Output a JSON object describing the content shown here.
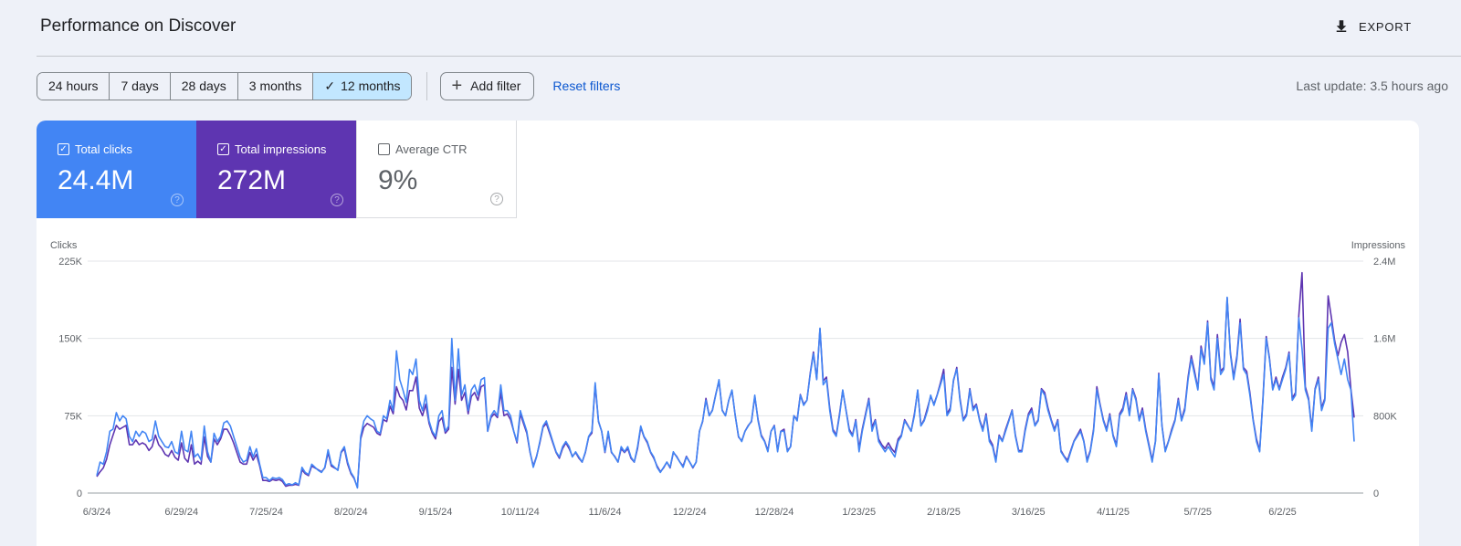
{
  "header": {
    "title": "Performance on Discover",
    "export_label": "EXPORT",
    "export_icon": "download-icon"
  },
  "toolbar": {
    "date_ranges": [
      "24 hours",
      "7 days",
      "28 days",
      "3 months",
      "12 months"
    ],
    "selected_range": "12 months",
    "add_filter_label": "Add filter",
    "reset_label": "Reset filters",
    "last_update": "Last update: 3.5 hours ago"
  },
  "metrics": [
    {
      "label": "Total clicks",
      "value": "24.4M",
      "checked": true,
      "color": "#4285f4"
    },
    {
      "label": "Total impressions",
      "value": "272M",
      "checked": true,
      "color": "#5e35b1"
    },
    {
      "label": "Average CTR",
      "value": "9%",
      "checked": false
    }
  ],
  "chart_data": {
    "type": "line",
    "ylabel_left": "Clicks",
    "ylabel_right": "Impressions",
    "y_left_ticks": [
      "0",
      "75K",
      "150K",
      "225K"
    ],
    "y_right_ticks": [
      "0",
      "800K",
      "1.6M",
      "2.4M"
    ],
    "ylim_left": [
      0,
      225000
    ],
    "ylim_right": [
      0,
      2400000
    ],
    "grid": true,
    "x_tick_labels": [
      "6/3/24",
      "6/29/24",
      "7/25/24",
      "8/20/24",
      "9/15/24",
      "10/11/24",
      "11/6/24",
      "12/2/24",
      "12/28/24",
      "1/23/25",
      "2/18/25",
      "3/16/25",
      "4/11/25",
      "5/7/25",
      "6/2/25"
    ],
    "x_tick_offsets_days": [
      0,
      26,
      52,
      78,
      104,
      130,
      156,
      182,
      208,
      234,
      260,
      286,
      312,
      338,
      364
    ],
    "series": [
      {
        "name": "Clicks",
        "color": "#4285f4",
        "axis": "left",
        "values": [
          17000,
          30000,
          28000,
          40000,
          60000,
          62000,
          78000,
          70000,
          75000,
          72000,
          55000,
          50000,
          60000,
          55000,
          60000,
          58000,
          50000,
          52000,
          70000,
          55000,
          50000,
          45000,
          44000,
          50000,
          40000,
          38000,
          60000,
          42000,
          40000,
          60000,
          35000,
          38000,
          32000,
          65000,
          40000,
          30000,
          58000,
          50000,
          55000,
          68000,
          70000,
          65000,
          55000,
          45000,
          35000,
          30000,
          32000,
          45000,
          35000,
          43000,
          28000,
          15000,
          15000,
          12000,
          15000,
          14000,
          15000,
          13000,
          8000,
          9000,
          8000,
          10000,
          8000,
          25000,
          20000,
          18000,
          28000,
          25000,
          22000,
          20000,
          25000,
          42000,
          28000,
          25000,
          22000,
          40000,
          45000,
          30000,
          20000,
          15000,
          5000,
          55000,
          70000,
          75000,
          72000,
          70000,
          60000,
          58000,
          75000,
          72000,
          90000,
          80000,
          138000,
          110000,
          100000,
          88000,
          120000,
          115000,
          130000,
          90000,
          80000,
          95000,
          70000,
          60000,
          55000,
          75000,
          80000,
          60000,
          65000,
          150000,
          90000,
          140000,
          95000,
          105000,
          80000,
          100000,
          105000,
          95000,
          110000,
          112000,
          60000,
          75000,
          80000,
          75000,
          105000,
          80000,
          80000,
          75000,
          60000,
          50000,
          80000,
          70000,
          60000,
          40000,
          25000,
          35000,
          50000,
          65000,
          70000,
          60000,
          50000,
          40000,
          35000,
          45000,
          50000,
          45000,
          35000,
          40000,
          35000,
          30000,
          40000,
          55000,
          60000,
          107000,
          70000,
          60000,
          40000,
          60000,
          40000,
          35000,
          30000,
          45000,
          40000,
          45000,
          35000,
          30000,
          45000,
          65000,
          55000,
          50000,
          40000,
          35000,
          25000,
          20000,
          25000,
          30000,
          25000,
          40000,
          35000,
          30000,
          25000,
          35000,
          30000,
          25000,
          30000,
          60000,
          70000,
          90000,
          75000,
          80000,
          95000,
          110000,
          80000,
          75000,
          90000,
          100000,
          75000,
          55000,
          50000,
          60000,
          65000,
          70000,
          95000,
          70000,
          55000,
          50000,
          40000,
          60000,
          65000,
          40000,
          60000,
          60000,
          40000,
          45000,
          75000,
          70000,
          95000,
          85000,
          90000,
          115000,
          135000,
          110000,
          160000,
          105000,
          110000,
          80000,
          60000,
          55000,
          75000,
          100000,
          80000,
          60000,
          55000,
          70000,
          40000,
          60000,
          75000,
          90000,
          60000,
          70000,
          50000,
          45000,
          40000,
          45000,
          40000,
          35000,
          50000,
          55000,
          70000,
          65000,
          60000,
          75000,
          100000,
          65000,
          70000,
          80000,
          95000,
          85000,
          95000,
          105000,
          115000,
          75000,
          80000,
          110000,
          120000,
          90000,
          70000,
          75000,
          100000,
          80000,
          85000,
          70000,
          60000,
          75000,
          50000,
          45000,
          30000,
          55000,
          50000,
          60000,
          70000,
          80000,
          55000,
          40000,
          40000,
          60000,
          75000,
          80000,
          65000,
          70000,
          100000,
          95000,
          80000,
          70000,
          60000,
          70000,
          40000,
          35000,
          30000,
          40000,
          50000,
          55000,
          60000,
          50000,
          30000,
          40000,
          60000,
          100000,
          85000,
          70000,
          60000,
          75000,
          55000,
          45000,
          75000,
          80000,
          95000,
          75000,
          100000,
          90000,
          70000,
          80000,
          60000,
          45000,
          30000,
          50000,
          115000,
          65000,
          40000,
          50000,
          60000,
          70000,
          90000,
          70000,
          80000,
          110000,
          130000,
          115000,
          100000,
          140000,
          125000,
          165000,
          110000,
          100000,
          150000,
          115000,
          120000,
          190000,
          135000,
          110000,
          130000,
          165000,
          120000,
          115000,
          95000,
          70000,
          50000,
          40000,
          90000,
          150000,
          130000,
          100000,
          110000,
          100000,
          110000,
          120000,
          135000,
          90000,
          95000,
          170000,
          140000,
          100000,
          90000,
          60000,
          100000,
          110000,
          80000,
          90000,
          160000,
          165000,
          145000,
          130000,
          115000,
          130000,
          110000,
          100000,
          50000
        ]
      },
      {
        "name": "Impressions",
        "color": "#5e35b1",
        "axis": "right",
        "values": [
          170000,
          220000,
          260000,
          350000,
          500000,
          600000,
          700000,
          660000,
          680000,
          700000,
          500000,
          500000,
          550000,
          500000,
          520000,
          500000,
          440000,
          480000,
          600000,
          500000,
          460000,
          400000,
          380000,
          440000,
          370000,
          340000,
          520000,
          360000,
          320000,
          500000,
          300000,
          330000,
          300000,
          580000,
          380000,
          320000,
          560000,
          500000,
          560000,
          660000,
          660000,
          600000,
          520000,
          420000,
          320000,
          300000,
          300000,
          420000,
          340000,
          400000,
          280000,
          130000,
          130000,
          120000,
          140000,
          130000,
          140000,
          120000,
          70000,
          80000,
          80000,
          90000,
          80000,
          240000,
          200000,
          180000,
          280000,
          260000,
          240000,
          220000,
          260000,
          420000,
          280000,
          260000,
          240000,
          420000,
          460000,
          300000,
          200000,
          150000,
          60000,
          560000,
          680000,
          720000,
          700000,
          680000,
          620000,
          600000,
          760000,
          740000,
          900000,
          820000,
          1100000,
          1000000,
          960000,
          860000,
          1060000,
          1060000,
          1200000,
          880000,
          800000,
          920000,
          720000,
          620000,
          560000,
          740000,
          780000,
          620000,
          660000,
          1300000,
          920000,
          1280000,
          960000,
          1040000,
          820000,
          1000000,
          1040000,
          960000,
          1100000,
          1120000,
          640000,
          780000,
          820000,
          780000,
          1040000,
          800000,
          820000,
          760000,
          640000,
          520000,
          820000,
          720000,
          620000,
          420000,
          280000,
          380000,
          520000,
          680000,
          720000,
          620000,
          520000,
          420000,
          360000,
          460000,
          520000,
          460000,
          380000,
          420000,
          360000,
          320000,
          420000,
          580000,
          620000,
          1120000,
          740000,
          640000,
          420000,
          620000,
          420000,
          380000,
          320000,
          460000,
          420000,
          460000,
          360000,
          320000,
          460000,
          680000,
          580000,
          520000,
          420000,
          360000,
          280000,
          220000,
          260000,
          320000,
          260000,
          420000,
          380000,
          320000,
          280000,
          380000,
          320000,
          260000,
          320000,
          640000,
          740000,
          980000,
          800000,
          860000,
          1020000,
          1160000,
          860000,
          800000,
          960000,
          1060000,
          800000,
          580000,
          540000,
          640000,
          700000,
          740000,
          1000000,
          760000,
          600000,
          540000,
          440000,
          640000,
          700000,
          440000,
          640000,
          660000,
          440000,
          480000,
          800000,
          760000,
          1020000,
          920000,
          960000,
          1240000,
          1460000,
          1180000,
          1700000,
          1160000,
          1200000,
          880000,
          660000,
          600000,
          820000,
          1060000,
          860000,
          660000,
          600000,
          760000,
          460000,
          660000,
          820000,
          980000,
          680000,
          760000,
          560000,
          500000,
          460000,
          520000,
          460000,
          420000,
          560000,
          600000,
          760000,
          700000,
          640000,
          820000,
          1060000,
          700000,
          760000,
          880000,
          1000000,
          920000,
          1020000,
          1140000,
          1280000,
          820000,
          880000,
          1160000,
          1300000,
          980000,
          760000,
          820000,
          1080000,
          880000,
          920000,
          760000,
          660000,
          820000,
          560000,
          500000,
          340000,
          600000,
          540000,
          660000,
          760000,
          860000,
          600000,
          440000,
          440000,
          660000,
          820000,
          880000,
          700000,
          760000,
          1080000,
          1040000,
          880000,
          760000,
          660000,
          760000,
          440000,
          380000,
          340000,
          440000,
          540000,
          600000,
          660000,
          540000,
          340000,
          440000,
          660000,
          1100000,
          920000,
          760000,
          660000,
          820000,
          600000,
          500000,
          820000,
          880000,
          1040000,
          820000,
          1080000,
          980000,
          760000,
          880000,
          660000,
          500000,
          340000,
          540000,
          1240000,
          700000,
          440000,
          540000,
          660000,
          760000,
          980000,
          760000,
          880000,
          1200000,
          1420000,
          1260000,
          1080000,
          1520000,
          1360000,
          1780000,
          1200000,
          1100000,
          1640000,
          1260000,
          1300000,
          2020000,
          1460000,
          1200000,
          1420000,
          1800000,
          1300000,
          1260000,
          1040000,
          760000,
          560000,
          440000,
          980000,
          1620000,
          1400000,
          1080000,
          1200000,
          1080000,
          1200000,
          1300000,
          1460000,
          980000,
          1040000,
          1840000,
          2280000,
          1100000,
          980000,
          660000,
          1080000,
          1200000,
          880000,
          980000,
          2040000,
          1820000,
          1580000,
          1420000,
          1560000,
          1640000,
          1460000,
          1080000,
          780000
        ]
      }
    ]
  }
}
